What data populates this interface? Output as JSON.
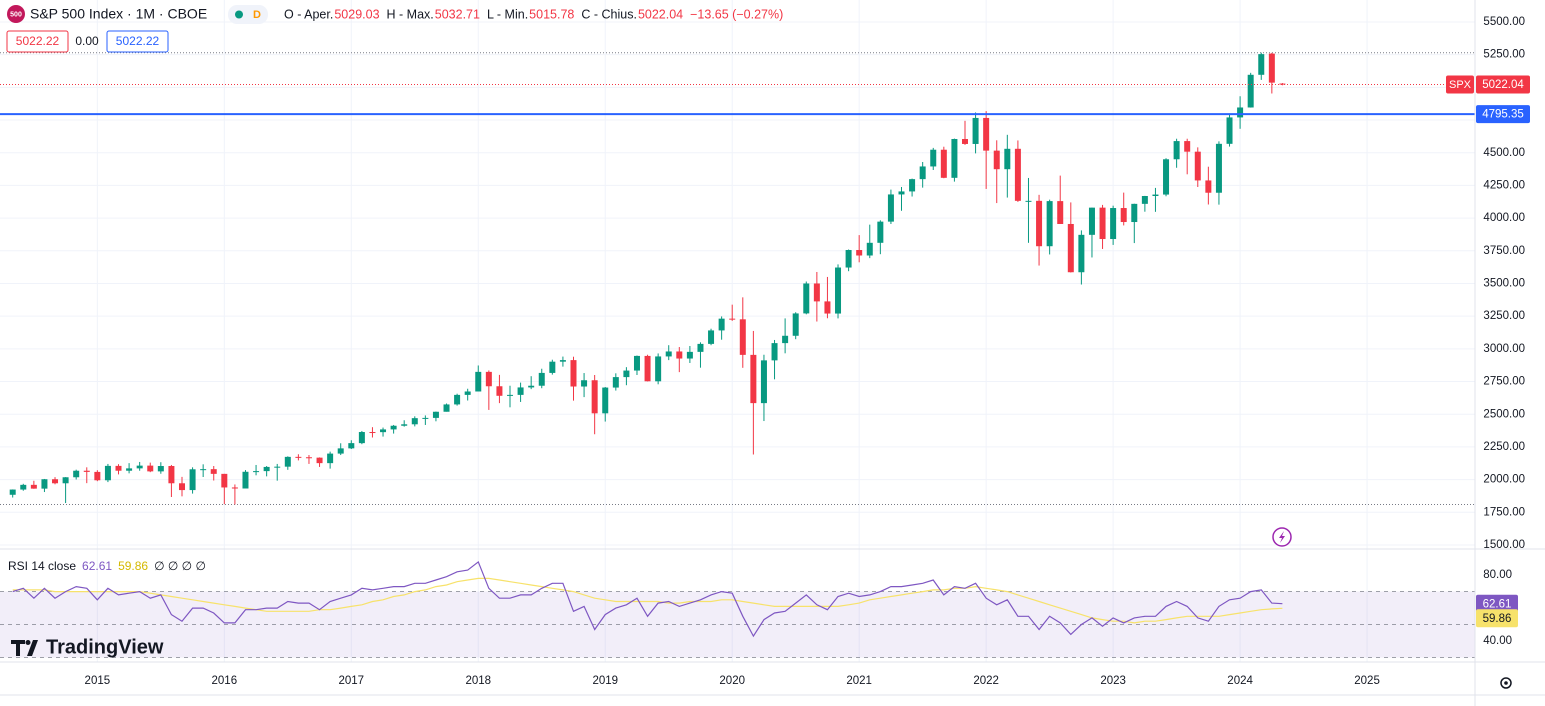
{
  "chart_data": {
    "type": "candlestick",
    "title": "S&P 500 Index · 1M · CBOE",
    "symbol_badge": "500",
    "interval_badge": "D",
    "legend": {
      "open_label": "O - Aper.",
      "high_label": "H - Max.",
      "low_label": "L - Min.",
      "close_label": "C - Chius.",
      "change": "−13.65 (−0.27%)"
    },
    "quote": {
      "bid": "5022.22",
      "spread": "0.00",
      "ask": "5022.22"
    },
    "symbol": "SPX",
    "up_color": "#089981",
    "down_color": "#f23645",
    "open": [
      1884,
      1924,
      1960,
      1931,
      2003,
      1972,
      2018,
      2068,
      2059,
      1995,
      2105,
      2068,
      2086,
      2107,
      2063,
      2104,
      1972,
      1920,
      2079,
      2080,
      2044,
      1940,
      1932,
      2060,
      2065,
      2097,
      2099,
      2174,
      2171,
      2168,
      2126,
      2199,
      2239,
      2279,
      2364,
      2363,
      2384,
      2412,
      2423,
      2470,
      2472,
      2519,
      2575,
      2648,
      2674,
      2824,
      2714,
      2641,
      2648,
      2705,
      2718,
      2816,
      2902,
      2914,
      2712,
      2760,
      2507,
      2704,
      2784,
      2834,
      2946,
      2752,
      2942,
      2980,
      2926,
      2977,
      3038,
      3141,
      3231,
      3226,
      2954,
      2585,
      2912,
      3044,
      3100,
      3271,
      3500,
      3363,
      3270,
      3622,
      3756,
      3714,
      3811,
      3973,
      4181,
      4204,
      4298,
      4395,
      4523,
      4308,
      4605,
      4567,
      4766,
      4516,
      4374,
      4530,
      4132,
      4132,
      3785,
      4130,
      3955,
      3586,
      3872,
      4080,
      3840,
      4077,
      3970,
      4109,
      4169,
      4180,
      4450,
      4589,
      4508,
      4288,
      4194,
      4568,
      4770,
      4846,
      5096,
      5258,
      5029.03
    ],
    "high": [
      1925,
      1968,
      1991,
      2005,
      2019,
      2019,
      2076,
      2094,
      2072,
      2120,
      2118,
      2126,
      2135,
      2130,
      2133,
      2112,
      2021,
      2094,
      2117,
      2104,
      2044,
      1963,
      2073,
      2112,
      2104,
      2120,
      2178,
      2194,
      2188,
      2170,
      2214,
      2278,
      2301,
      2372,
      2401,
      2398,
      2418,
      2454,
      2484,
      2491,
      2520,
      2582,
      2657,
      2695,
      2873,
      2835,
      2801,
      2718,
      2742,
      2791,
      2848,
      2917,
      2941,
      2940,
      2815,
      2800,
      2708,
      2813,
      2860,
      2949,
      2955,
      2965,
      3028,
      3014,
      3022,
      3050,
      3154,
      3248,
      3338,
      3394,
      3137,
      2955,
      3068,
      3233,
      3280,
      3515,
      3588,
      3550,
      3646,
      3760,
      3870,
      3950,
      3983,
      4218,
      4238,
      4302,
      4429,
      4537,
      4546,
      4608,
      4744,
      4808,
      4818,
      4595,
      4637,
      4594,
      4307,
      4178,
      4141,
      4325,
      4120,
      3906,
      4080,
      4101,
      4095,
      4195,
      4110,
      4170,
      4231,
      4458,
      4607,
      4607,
      4541,
      4393,
      4587,
      4794,
      4932,
      5111,
      5265,
      5264,
      5032.71
    ],
    "low": [
      1863,
      1915,
      1930,
      1905,
      1964,
      1821,
      2001,
      1973,
      1988,
      1981,
      2040,
      2048,
      2068,
      2057,
      2045,
      1867,
      1872,
      1893,
      2020,
      1993,
      1812,
      1810,
      1937,
      2033,
      2025,
      1992,
      2075,
      2147,
      2120,
      2097,
      2084,
      2188,
      2234,
      2271,
      2322,
      2329,
      2352,
      2405,
      2407,
      2418,
      2446,
      2520,
      2566,
      2605,
      2674,
      2533,
      2585,
      2553,
      2594,
      2692,
      2699,
      2803,
      2864,
      2604,
      2631,
      2347,
      2444,
      2681,
      2722,
      2800,
      2751,
      2729,
      2914,
      2822,
      2892,
      2856,
      3028,
      3070,
      3214,
      2855,
      2192,
      2448,
      2767,
      2966,
      3074,
      3264,
      3209,
      3234,
      3233,
      3594,
      3662,
      3694,
      3724,
      3955,
      4056,
      4165,
      4233,
      4368,
      4305,
      4279,
      4560,
      4495,
      4223,
      4115,
      4157,
      4124,
      3811,
      3637,
      3722,
      3955,
      3584,
      3492,
      3699,
      3764,
      3795,
      3944,
      3809,
      4049,
      4048,
      4167,
      4385,
      4335,
      4238,
      4104,
      4103,
      4547,
      4683,
      4845,
      5057,
      4953,
      5015.78
    ],
    "close": [
      1924,
      1960,
      1931,
      2003,
      1972,
      2018,
      2068,
      2059,
      1995,
      2105,
      2068,
      2086,
      2107,
      2063,
      2104,
      1972,
      1920,
      2079,
      2080,
      2044,
      1940,
      1932,
      2060,
      2065,
      2097,
      2099,
      2174,
      2171,
      2168,
      2126,
      2199,
      2239,
      2279,
      2364,
      2363,
      2384,
      2412,
      2423,
      2470,
      2472,
      2519,
      2575,
      2648,
      2674,
      2824,
      2714,
      2641,
      2648,
      2705,
      2718,
      2816,
      2902,
      2914,
      2712,
      2760,
      2507,
      2704,
      2784,
      2834,
      2946,
      2752,
      2942,
      2980,
      2926,
      2977,
      3038,
      3141,
      3231,
      3226,
      2954,
      2585,
      2912,
      3044,
      3100,
      3271,
      3500,
      3363,
      3270,
      3622,
      3756,
      3714,
      3811,
      3973,
      4181,
      4204,
      4298,
      4395,
      4523,
      4308,
      4605,
      4567,
      4766,
      4516,
      4374,
      4530,
      4132,
      4132,
      3785,
      4130,
      3955,
      3586,
      3872,
      4080,
      3840,
      4077,
      3970,
      4109,
      4169,
      4180,
      4450,
      4589,
      4508,
      4288,
      4194,
      4568,
      4770,
      4846,
      5096,
      5254,
      5036,
      5022.04
    ],
    "xlim": [
      -1.2,
      138.2
    ],
    "xticks": [
      {
        "value": 8,
        "label": "2015"
      },
      {
        "value": 20,
        "label": "2016"
      },
      {
        "value": 32,
        "label": "2017"
      },
      {
        "value": 44,
        "label": "2018"
      },
      {
        "value": 56,
        "label": "2019"
      },
      {
        "value": 68,
        "label": "2020"
      },
      {
        "value": 80,
        "label": "2021"
      },
      {
        "value": 92,
        "label": "2022"
      },
      {
        "value": 104,
        "label": "2023"
      },
      {
        "value": 116,
        "label": "2024"
      },
      {
        "value": 128,
        "label": "2025"
      }
    ],
    "ylim": [
      1477,
      5668
    ],
    "yticks": [
      {
        "value": 1500,
        "label": "1500.00"
      },
      {
        "value": 1750,
        "label": "1750.00"
      },
      {
        "value": 2000,
        "label": "2000.00"
      },
      {
        "value": 2250,
        "label": "2250.00"
      },
      {
        "value": 2500,
        "label": "2500.00"
      },
      {
        "value": 2750,
        "label": "2750.00"
      },
      {
        "value": 3000,
        "label": "3000.00"
      },
      {
        "value": 3250,
        "label": "3250.00"
      },
      {
        "value": 3500,
        "label": "3500.00"
      },
      {
        "value": 3750,
        "label": "3750.00"
      },
      {
        "value": 4000,
        "label": "4000.00"
      },
      {
        "value": 4250,
        "label": "4250.00"
      },
      {
        "value": 4500,
        "label": "4500.00"
      },
      {
        "value": 4750,
        "label": "4750.00"
      },
      {
        "value": 5000,
        "label": "5000.00"
      },
      {
        "value": 5250,
        "label": "5250.00"
      },
      {
        "value": 5500,
        "label": "5500.00"
      }
    ],
    "grid": true,
    "hline": {
      "value": 4795.35,
      "color": "#2962ff"
    },
    "rsi": {
      "title": "RSI 14 close",
      "empty": "∅ ∅ ∅ ∅",
      "color": "#7e57c2",
      "ma_color": "#f7e26b",
      "values": [
        70,
        72,
        66,
        72,
        66,
        70,
        73,
        72,
        65,
        72,
        68,
        69,
        70,
        66,
        68,
        56,
        52,
        60,
        60,
        57,
        51,
        51,
        59,
        59,
        60,
        60,
        64,
        63,
        63,
        59,
        64,
        66,
        68,
        72,
        71,
        72,
        73,
        73,
        75,
        75,
        77,
        79,
        82,
        83,
        88,
        72,
        66,
        66,
        68,
        68,
        72,
        75,
        75,
        58,
        61,
        47,
        56,
        60,
        62,
        66,
        55,
        63,
        64,
        61,
        63,
        65,
        68,
        70,
        69,
        55,
        43,
        53,
        57,
        58,
        63,
        68,
        62,
        59,
        67,
        69,
        67,
        68,
        70,
        73,
        73,
        74,
        75,
        77,
        68,
        73,
        72,
        75,
        66,
        62,
        65,
        55,
        55,
        47,
        55,
        51,
        44,
        50,
        54,
        49,
        54,
        51,
        54,
        55,
        55,
        61,
        64,
        61,
        54,
        52,
        61,
        65,
        66,
        70,
        71,
        63,
        62.61
      ],
      "ma_values": [
        71,
        71,
        71,
        71,
        70,
        70,
        70,
        70,
        70,
        70,
        70,
        70,
        70,
        69,
        68,
        67,
        66,
        65,
        64,
        63,
        62,
        61,
        60,
        59,
        58,
        58,
        58,
        58,
        58,
        59,
        59,
        60,
        61,
        62,
        64,
        65,
        67,
        68,
        70,
        71,
        73,
        74,
        76,
        77,
        78,
        78,
        77,
        76,
        75,
        74,
        73,
        72,
        71,
        70,
        68,
        66,
        65,
        64,
        64,
        64,
        64,
        64,
        63,
        63,
        64,
        64,
        64,
        65,
        65,
        64,
        63,
        62,
        61,
        61,
        61,
        61,
        61,
        61,
        61,
        62,
        63,
        65,
        66,
        67,
        68,
        69,
        70,
        71,
        71,
        72,
        72,
        73,
        72,
        71,
        70,
        68,
        66,
        64,
        62,
        60,
        58,
        56,
        54,
        53,
        52,
        52,
        51,
        52,
        52,
        53,
        54,
        55,
        55,
        55,
        55,
        56,
        57,
        58,
        59,
        59.5,
        59.86
      ],
      "ylim": [
        28.5,
        95.2
      ],
      "yticks": [
        {
          "value": 80,
          "label": "80.00"
        },
        {
          "value": 40,
          "label": "40.00"
        }
      ],
      "levels": [
        70,
        50,
        30
      ]
    },
    "branding": "TradingView"
  }
}
